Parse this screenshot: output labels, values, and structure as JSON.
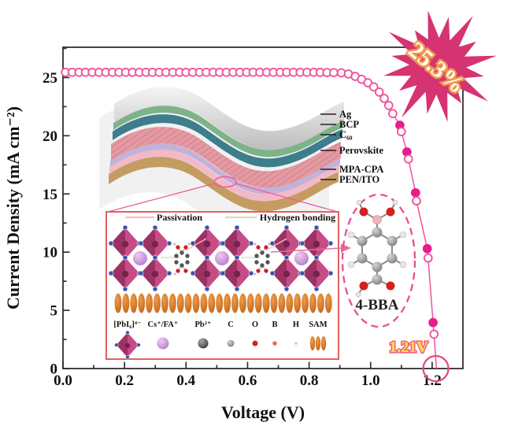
{
  "figure": {
    "badge": {
      "text": "25.3%",
      "star_color": "#d63372",
      "text_color": "#fffdf6",
      "glow_color": "#f7a04a"
    },
    "voc_annotation": {
      "text": "1.21V",
      "fill": "#ffdf52",
      "outline": "#ee5f78"
    }
  },
  "chart_data": {
    "type": "scatter",
    "title": "",
    "xlabel": "Voltage (V)",
    "ylabel": "Current Density (mA cm⁻²)",
    "xlim": [
      0,
      1.3
    ],
    "ylim": [
      0,
      27.6
    ],
    "grid": false,
    "x_tick_values": [
      0.0,
      0.2,
      0.4,
      0.6,
      0.8,
      1.0,
      1.2
    ],
    "x_tick_labels": [
      "0.0",
      "0.2",
      "0.4",
      "0.6",
      "0.8",
      "1.0",
      "1.2"
    ],
    "x_minor_step": 0.1,
    "y_tick_values": [
      0,
      5,
      10,
      15,
      20,
      25
    ],
    "y_tick_labels": [
      "0",
      "5",
      "10",
      "15",
      "20",
      "25"
    ],
    "y_minor_step": 2.5,
    "series": [
      {
        "name": "J-V curve",
        "marker": "open-circle",
        "line_color": "#f0549c",
        "fill_color": "#e91c8c",
        "points": [
          [
            0.008,
            25.45
          ],
          [
            0.03,
            25.45
          ],
          [
            0.052,
            25.45
          ],
          [
            0.073,
            25.45
          ],
          [
            0.095,
            25.45
          ],
          [
            0.117,
            25.45
          ],
          [
            0.139,
            25.45
          ],
          [
            0.161,
            25.45
          ],
          [
            0.182,
            25.45
          ],
          [
            0.204,
            25.45
          ],
          [
            0.226,
            25.45
          ],
          [
            0.248,
            25.45
          ],
          [
            0.27,
            25.45
          ],
          [
            0.291,
            25.45
          ],
          [
            0.313,
            25.45
          ],
          [
            0.335,
            25.45
          ],
          [
            0.357,
            25.45
          ],
          [
            0.379,
            25.45
          ],
          [
            0.4,
            25.45
          ],
          [
            0.422,
            25.45
          ],
          [
            0.444,
            25.45
          ],
          [
            0.466,
            25.45
          ],
          [
            0.488,
            25.45
          ],
          [
            0.509,
            25.45
          ],
          [
            0.531,
            25.45
          ],
          [
            0.553,
            25.45
          ],
          [
            0.575,
            25.45
          ],
          [
            0.597,
            25.45
          ],
          [
            0.618,
            25.45
          ],
          [
            0.64,
            25.45
          ],
          [
            0.662,
            25.45
          ],
          [
            0.684,
            25.45
          ],
          [
            0.706,
            25.45
          ],
          [
            0.727,
            25.45
          ],
          [
            0.749,
            25.45
          ],
          [
            0.771,
            25.45
          ],
          [
            0.793,
            25.45
          ],
          [
            0.815,
            25.45
          ],
          [
            0.836,
            25.44
          ],
          [
            0.858,
            25.43
          ],
          [
            0.88,
            25.42
          ],
          [
            0.905,
            25.4
          ],
          [
            0.928,
            25.3
          ],
          [
            0.95,
            25.1
          ],
          [
            0.971,
            24.85
          ],
          [
            0.991,
            24.55
          ],
          [
            1.01,
            24.2
          ],
          [
            1.028,
            23.75
          ],
          [
            1.044,
            23.2
          ],
          [
            1.059,
            22.6
          ],
          [
            1.072,
            21.9
          ],
          [
            1.095,
            20.9,
            1
          ],
          [
            1.1,
            20.35
          ],
          [
            1.118,
            18.6,
            1
          ],
          [
            1.123,
            18.0
          ],
          [
            1.146,
            15.1,
            1
          ],
          [
            1.149,
            14.4
          ],
          [
            1.184,
            10.3,
            1
          ],
          [
            1.187,
            9.5
          ],
          [
            1.203,
            3.95,
            1
          ],
          [
            1.206,
            2.95
          ]
        ],
        "line_end": [
          1.214,
          0
        ]
      }
    ],
    "annotations": [
      {
        "type": "text-callout",
        "text": "1.21V",
        "near_x": 1.15,
        "near_y": 1.8
      },
      {
        "type": "circle-highlight",
        "x": 1.212,
        "y": 0
      },
      {
        "type": "starburst-badge",
        "text": "25.3%"
      }
    ]
  },
  "device_stack": {
    "layers": [
      {
        "label": "Ag",
        "color": "#c8c8c8"
      },
      {
        "label": "BCP",
        "color": "#7eb389"
      },
      {
        "label": "C₆₀",
        "color": "#3e7d8d"
      },
      {
        "label": "Perovskite",
        "color": "#e39aa2"
      },
      {
        "label": "MPA-CPA",
        "color": "#c3b1d8"
      },
      {
        "label": "",
        "color": "#f2b9c7"
      },
      {
        "label": "PEN/ITO",
        "color": "#c49c62"
      }
    ]
  },
  "mechanism_inset": {
    "border_color": "#e06060",
    "interactions": [
      {
        "label": "Passivation",
        "line_color": "#f6c3c9"
      },
      {
        "label": "Hydrogen bonding",
        "line_color": "#cfe2c4"
      }
    ],
    "legend": [
      {
        "label": "[PbI₆]⁴⁻",
        "icon": "octahedron"
      },
      {
        "label": "Cs⁺/FA⁺",
        "icon": "lavender-sphere"
      },
      {
        "label": "Pb²⁺",
        "icon": "dark-sphere"
      },
      {
        "label": "C",
        "icon": "gray-sphere"
      },
      {
        "label": "O",
        "icon": "red-dot"
      },
      {
        "label": "B",
        "icon": "pink-dot"
      },
      {
        "label": "H",
        "icon": "tiny-dot"
      },
      {
        "label": "SAM",
        "icon": "orange-ellipses"
      }
    ]
  },
  "molecule_inset": {
    "label": "4-BBA",
    "ellipse_color": "#ec4d94"
  }
}
